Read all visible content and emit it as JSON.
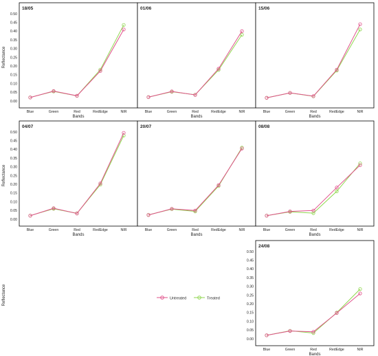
{
  "figure": {
    "y_label": "Reflectance",
    "x_label": "Bands",
    "legend": {
      "untreated": "Untreated",
      "treated": "Treated"
    },
    "colors": {
      "untreated": "#e0508a",
      "treated": "#8fd64e",
      "frame": "#000000"
    }
  },
  "chart_data": [
    {
      "type": "line",
      "title": "18/05",
      "xlabel": "Bands",
      "ylabel": "Reflectance",
      "categories": [
        "Blue",
        "Green",
        "Red",
        "RedEdge",
        "NIR"
      ],
      "ylim": [
        0,
        0.5
      ],
      "yticks": [
        "0.00",
        "0.05",
        "0.10",
        "0.15",
        "0.20",
        "0.25",
        "0.30",
        "0.35",
        "0.40",
        "0.45",
        "0.50"
      ],
      "series": [
        {
          "name": "Untreated",
          "values": [
            0.02,
            0.057,
            0.03,
            0.172,
            0.41
          ]
        },
        {
          "name": "Treated",
          "values": [
            0.021,
            0.055,
            0.03,
            0.18,
            0.436
          ]
        }
      ]
    },
    {
      "type": "line",
      "title": "01/06",
      "xlabel": "Bands",
      "ylabel": "",
      "categories": [
        "Blue",
        "Green",
        "Red",
        "RedEdge",
        "NIR"
      ],
      "ylim": [
        0,
        0.5
      ],
      "yticks": [],
      "series": [
        {
          "name": "Untreated",
          "values": [
            0.022,
            0.055,
            0.035,
            0.185,
            0.4
          ]
        },
        {
          "name": "Treated",
          "values": [
            0.023,
            0.053,
            0.036,
            0.178,
            0.38
          ]
        }
      ]
    },
    {
      "type": "line",
      "title": "15/06",
      "xlabel": "Bands",
      "ylabel": "",
      "categories": [
        "Blue",
        "Green",
        "Red",
        "RedEdge",
        "NIR"
      ],
      "ylim": [
        0,
        0.5
      ],
      "yticks": [],
      "series": [
        {
          "name": "Untreated",
          "values": [
            0.018,
            0.047,
            0.028,
            0.18,
            0.44
          ]
        },
        {
          "name": "Treated",
          "values": [
            0.019,
            0.046,
            0.027,
            0.175,
            0.41
          ]
        }
      ]
    },
    {
      "type": "line",
      "title": "04/07",
      "xlabel": "Bands",
      "ylabel": "Reflectance",
      "categories": [
        "Blue",
        "Green",
        "Red",
        "RedEdge",
        "NIR"
      ],
      "ylim": [
        0,
        0.5
      ],
      "yticks": [
        "0.00",
        "0.05",
        "0.10",
        "0.15",
        "0.20",
        "0.25",
        "0.30",
        "0.35",
        "0.40",
        "0.45",
        "0.50"
      ],
      "series": [
        {
          "name": "Untreated",
          "values": [
            0.02,
            0.063,
            0.033,
            0.205,
            0.495
          ]
        },
        {
          "name": "Treated",
          "values": [
            0.021,
            0.06,
            0.034,
            0.198,
            0.48
          ]
        }
      ]
    },
    {
      "type": "line",
      "title": "20/07",
      "xlabel": "Bands",
      "ylabel": "",
      "categories": [
        "Blue",
        "Green",
        "Red",
        "RedEdge",
        "NIR"
      ],
      "ylim": [
        0,
        0.5
      ],
      "yticks": [],
      "series": [
        {
          "name": "Untreated",
          "values": [
            0.024,
            0.06,
            0.05,
            0.195,
            0.405
          ]
        },
        {
          "name": "Treated",
          "values": [
            0.025,
            0.058,
            0.045,
            0.19,
            0.41
          ]
        }
      ]
    },
    {
      "type": "line",
      "title": "08/08",
      "xlabel": "Bands",
      "ylabel": "",
      "categories": [
        "Blue",
        "Green",
        "Red",
        "RedEdge",
        "NIR"
      ],
      "ylim": [
        0,
        0.5
      ],
      "yticks": [],
      "series": [
        {
          "name": "Untreated",
          "values": [
            0.02,
            0.045,
            0.05,
            0.182,
            0.31
          ]
        },
        {
          "name": "Treated",
          "values": [
            0.021,
            0.042,
            0.035,
            0.16,
            0.32
          ]
        }
      ]
    },
    {
      "type": "line",
      "title": "24/08",
      "xlabel": "Bands",
      "ylabel": "Reflectance",
      "categories": [
        "Blue",
        "Green",
        "Red",
        "RedEdge",
        "NIR"
      ],
      "ylim": [
        0,
        0.5
      ],
      "yticks": [
        "0.00",
        "0.05",
        "0.10",
        "0.15",
        "0.20",
        "0.25",
        "0.30",
        "0.35",
        "0.40",
        "0.45",
        "0.50"
      ],
      "series": [
        {
          "name": "Untreated",
          "values": [
            0.02,
            0.045,
            0.04,
            0.148,
            0.26
          ]
        },
        {
          "name": "Treated",
          "values": [
            0.02,
            0.046,
            0.033,
            0.15,
            0.285
          ]
        }
      ]
    }
  ]
}
